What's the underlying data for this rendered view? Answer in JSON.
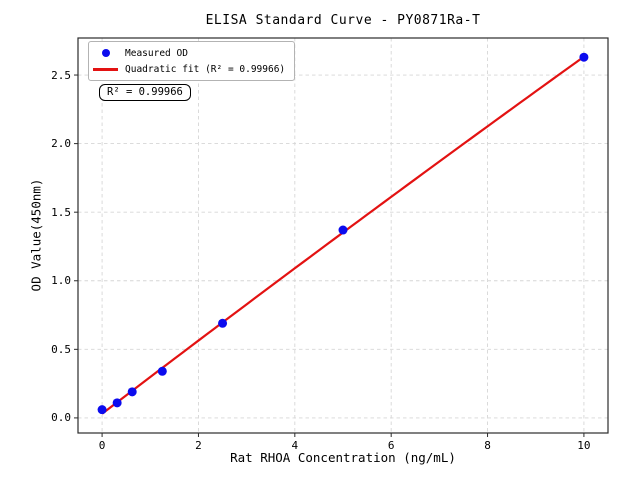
{
  "figure": {
    "title": "ELISA Standard Curve - PY0871Ra-T",
    "xlabel": "Rat RHOA Concentration (ng/mL)",
    "ylabel": "OD Value(450nm)",
    "annotation": "R² = 0.99966",
    "legend": {
      "entries": [
        {
          "label": "Measured OD",
          "marker": "dot",
          "color": "#0b0bee"
        },
        {
          "label": "Quadratic fit (R² = 0.99966)",
          "marker": "line",
          "color": "#e31212"
        }
      ]
    }
  },
  "chart_data": {
    "type": "scatter",
    "title": "ELISA Standard Curve - PY0871Ra-T",
    "xlabel": "Rat RHOA Concentration (ng/mL)",
    "ylabel": "OD Value(450nm)",
    "x": [
      0,
      0.3125,
      0.625,
      1.25,
      2.5,
      5,
      10
    ],
    "series": [
      {
        "name": "Measured OD",
        "values": [
          0.06,
          0.11,
          0.19,
          0.34,
          0.69,
          1.37,
          2.63
        ]
      },
      {
        "name": "Quadratic fit (R² = 0.99966)",
        "fit": "quadratic",
        "r_squared": 0.99966
      }
    ],
    "x_ticks": [
      0,
      2,
      4,
      6,
      8,
      10
    ],
    "y_ticks": [
      0.0,
      0.5,
      1.0,
      1.5,
      2.0,
      2.5
    ],
    "x_tick_labels": [
      "0",
      "2",
      "4",
      "6",
      "8",
      "10"
    ],
    "y_tick_labels": [
      "0.0",
      "0.5",
      "1.0",
      "1.5",
      "2.0",
      "2.5"
    ],
    "xlim": [
      -0.5,
      10.5
    ],
    "ylim": [
      -0.11,
      2.77
    ],
    "grid": true,
    "legend_position": "upper left",
    "colors": {
      "points": "#0b0bee",
      "fit_line": "#e31212",
      "grid": "#d6d6d6",
      "frame": "#2b2b2b"
    }
  }
}
